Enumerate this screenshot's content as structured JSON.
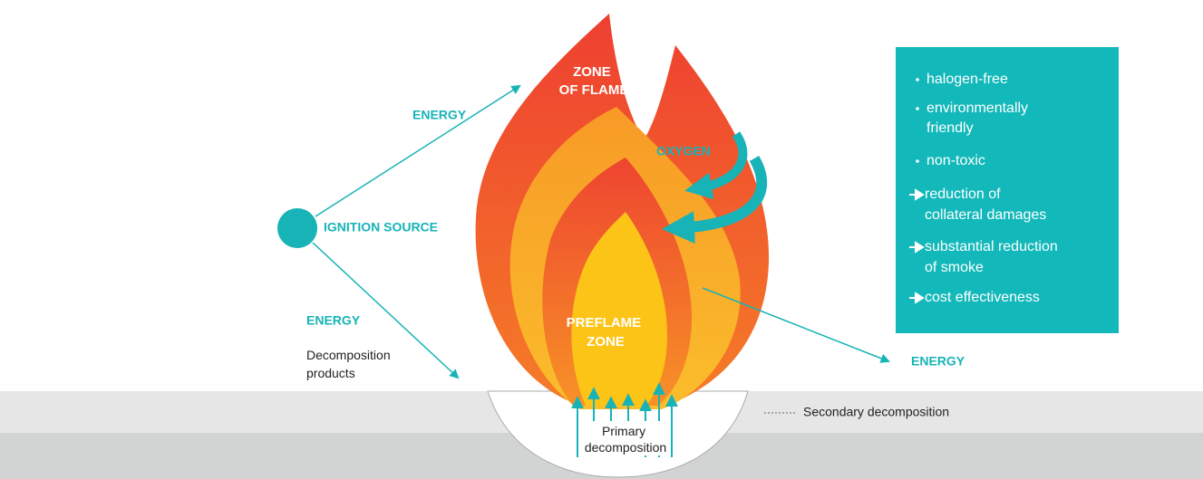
{
  "diagram": {
    "zone_of_flame": [
      "ZONE",
      "OF FLAME"
    ],
    "energy_top": "ENERGY",
    "ignition_source": "IGNITION SOURCE",
    "energy_left": "ENERGY",
    "decomposition_products": [
      "Decomposition",
      "products"
    ],
    "oxygen": "OXYGEN",
    "preflame_zone": [
      "PREFLAME",
      "ZONE"
    ],
    "energy_right": "ENERGY",
    "primary_decomposition": [
      "Primary",
      "decomposition"
    ],
    "secondary_decomposition": "Secondary decomposition"
  },
  "properties_box": {
    "features": [
      [
        "halogen-free"
      ],
      [
        "environmentally",
        "friendly"
      ],
      [
        "non-toxic"
      ]
    ],
    "benefits": [
      [
        "reduction of",
        "collateral damages"
      ],
      [
        "substantial reduction",
        "of smoke"
      ],
      [
        "cost effectiveness"
      ]
    ]
  }
}
